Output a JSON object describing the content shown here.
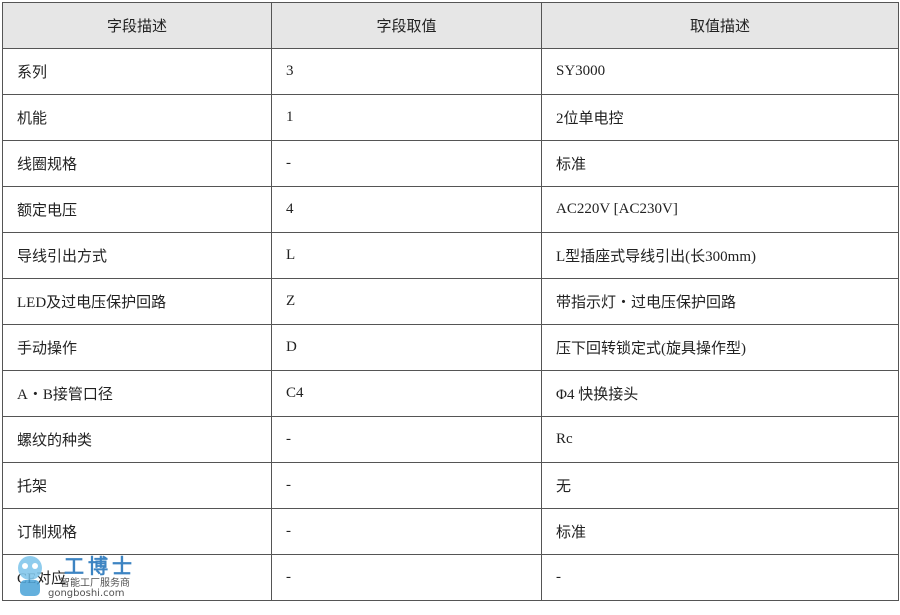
{
  "table": {
    "header": [
      "字段描述",
      "字段取值",
      "取值描述"
    ],
    "rows": [
      [
        "系列",
        "3",
        "SY3000"
      ],
      [
        "机能",
        "1",
        "2位单电控"
      ],
      [
        "线圈规格",
        "-",
        "标准"
      ],
      [
        "额定电压",
        "4",
        "AC220V [AC230V]"
      ],
      [
        "导线引出方式",
        "L",
        "L型插座式导线引出(长300mm)"
      ],
      [
        "LED及过电压保护回路",
        "Z",
        "带指示灯・过电压保护回路"
      ],
      [
        "手动操作",
        "D",
        "压下回转锁定式(旋具操作型)"
      ],
      [
        "A・B接管口径",
        "C4",
        "Φ4 快换接头"
      ],
      [
        "螺纹的种类",
        "-",
        "Rc"
      ],
      [
        "托架",
        "-",
        "无"
      ],
      [
        "订制规格",
        "-",
        "标准"
      ],
      [
        "CE对应",
        "-",
        "-"
      ]
    ]
  },
  "watermark": {
    "brand": "工博士",
    "slogan": "智能工厂服务商",
    "url": "gongboshi.com"
  }
}
